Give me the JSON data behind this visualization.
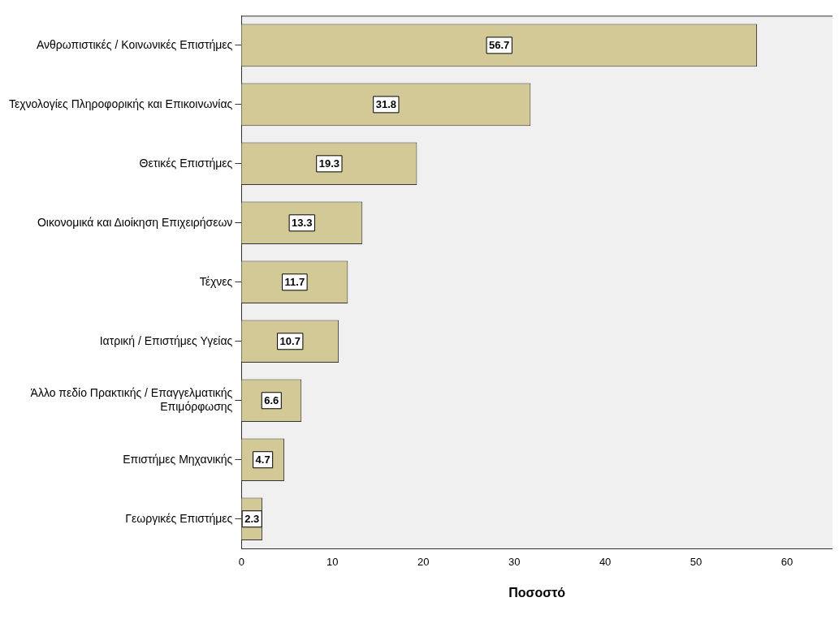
{
  "chart_data": {
    "type": "bar",
    "orientation": "horizontal",
    "xlabel": "Ποσοστό",
    "categories": [
      "Ανθρωπιστικές / Κοινωνικές Επιστήμες",
      "Τεχνολογίες Πληροφορικής και Επικοινωνίας",
      "Θετικές Επιστήμες",
      "Οικονομικά και Διοίκηση Επιχειρήσεων",
      "Τέχνες",
      "Ιατρική / Επιστήμες Υγείας",
      "Άλλο πεδίο Πρακτικής / Επαγγελματικής Επιμόρφωσης",
      "Επιστήμες Μηχανικής",
      "Γεωργικές Επιστήμες"
    ],
    "values": [
      56.7,
      31.8,
      19.3,
      13.3,
      11.7,
      10.7,
      6.6,
      4.7,
      2.3
    ],
    "color": "#d2c996",
    "xlim": [
      0,
      65
    ],
    "xticks": [
      0,
      10,
      20,
      30,
      40,
      50,
      60
    ],
    "data_labels": true,
    "grid": false,
    "legend": false
  }
}
